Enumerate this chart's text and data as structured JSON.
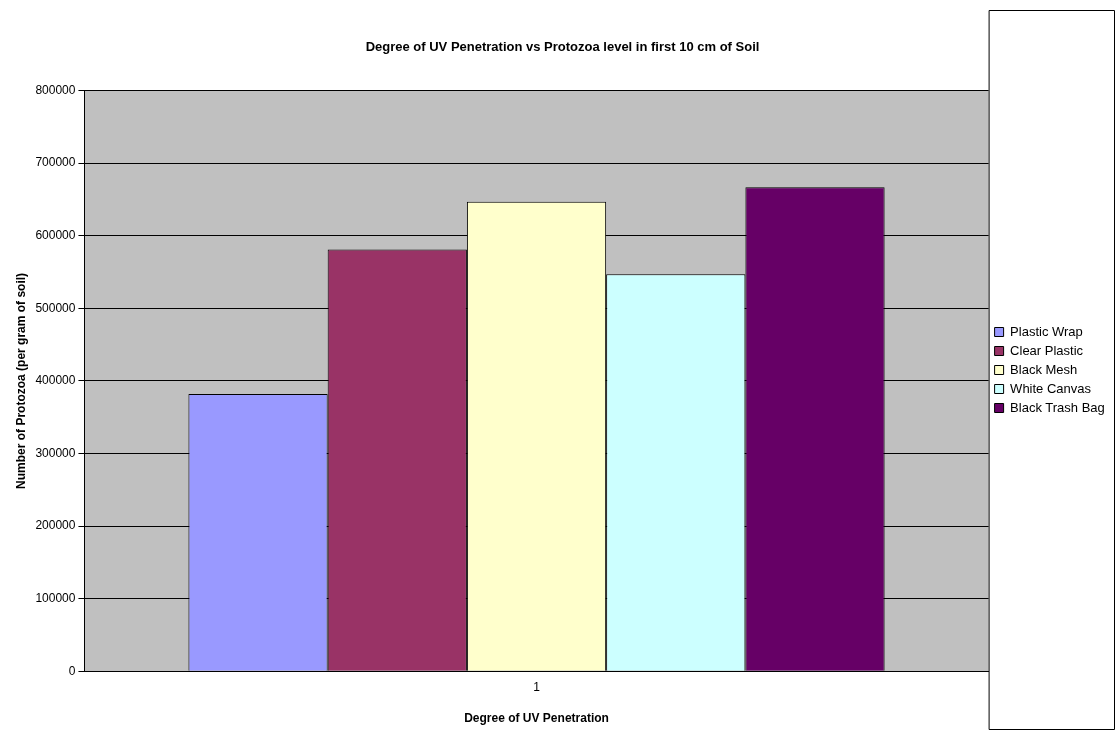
{
  "chart_data": {
    "type": "bar",
    "title": "Degree of UV Penetration vs Protozoa level in first 10 cm of Soil",
    "xlabel": "Degree of UV Penetration",
    "ylabel": "Number of Protozoa (per gram of soil)",
    "categories": [
      "1"
    ],
    "series": [
      {
        "name": "Plastic Wrap",
        "color": "#9999ff",
        "values": [
          382000
        ]
      },
      {
        "name": "Clear Plastic",
        "color": "#993366",
        "values": [
          581000
        ]
      },
      {
        "name": "Black Mesh",
        "color": "#ffffcc",
        "values": [
          647000
        ]
      },
      {
        "name": "White Canvas",
        "color": "#ccffff",
        "values": [
          547000
        ]
      },
      {
        "name": "Black Trash Bag",
        "color": "#660066",
        "values": [
          667000
        ]
      }
    ],
    "ylim": [
      0,
      800000
    ],
    "yticks": [
      0,
      100000,
      200000,
      300000,
      400000,
      500000,
      600000,
      700000,
      800000
    ],
    "grid": "y",
    "legend": "right"
  }
}
